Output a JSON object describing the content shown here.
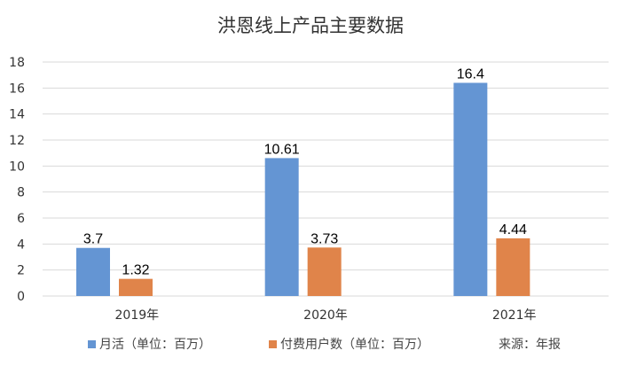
{
  "chart_data": {
    "type": "bar",
    "title": "洪恩线上产品主要数据",
    "categories": [
      "2019年",
      "2020年",
      "2021年"
    ],
    "series": [
      {
        "name": "月活（单位：百万）",
        "color": "#6495d3",
        "values": [
          3.7,
          10.61,
          16.4
        ],
        "labels": [
          "3.7",
          "10.61",
          "16.4"
        ]
      },
      {
        "name": "付费用户数（单位：百万）",
        "color": "#e0844a",
        "values": [
          1.32,
          3.73,
          4.44
        ],
        "labels": [
          "1.32",
          "3.73",
          "4.44"
        ]
      }
    ],
    "ylim": [
      0,
      18
    ],
    "yticks": [
      "0",
      "2",
      "4",
      "6",
      "8",
      "10",
      "12",
      "14",
      "16",
      "18"
    ],
    "grid": true,
    "legend_position": "bottom",
    "source_note": "来源：年报"
  }
}
